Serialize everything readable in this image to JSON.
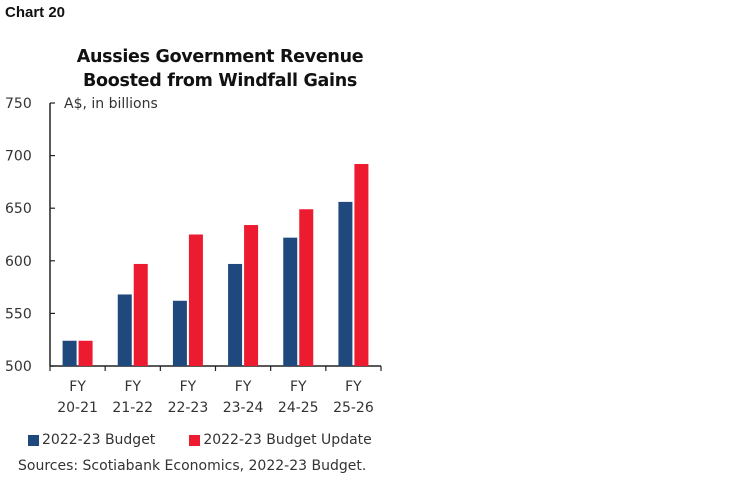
{
  "header": {
    "chart_number": "Chart 20"
  },
  "chart_data": {
    "type": "bar",
    "title": "Aussies Government Revenue Boosted from Windfall Gains",
    "title_lines": [
      "Aussies Government Revenue",
      "Boosted from Windfall Gains"
    ],
    "unit_label": "A$, in billions",
    "xlabel": "",
    "ylabel": "A$, in billions",
    "ylim": [
      500,
      750
    ],
    "yticks": [
      500,
      550,
      600,
      650,
      700,
      750
    ],
    "categories": [
      "FY 20-21",
      "FY 21-22",
      "FY 22-23",
      "FY 23-24",
      "FY 24-25",
      "FY 25-26"
    ],
    "category_lines": [
      [
        "FY",
        "20-21"
      ],
      [
        "FY",
        "21-22"
      ],
      [
        "FY",
        "22-23"
      ],
      [
        "FY",
        "23-24"
      ],
      [
        "FY",
        "24-25"
      ],
      [
        "FY",
        "25-26"
      ]
    ],
    "series": [
      {
        "name": "2022-23 Budget",
        "color": "#1f497d",
        "values": [
          524,
          568,
          562,
          597,
          622,
          656
        ]
      },
      {
        "name": "2022-23 Budget Update",
        "color": "#ed1b2f",
        "values": [
          524,
          597,
          625,
          634,
          649,
          692
        ]
      }
    ],
    "grid": false,
    "legend_position": "bottom"
  },
  "footer": {
    "source": "Sources: Scotiabank Economics, 2022-23 Budget."
  }
}
